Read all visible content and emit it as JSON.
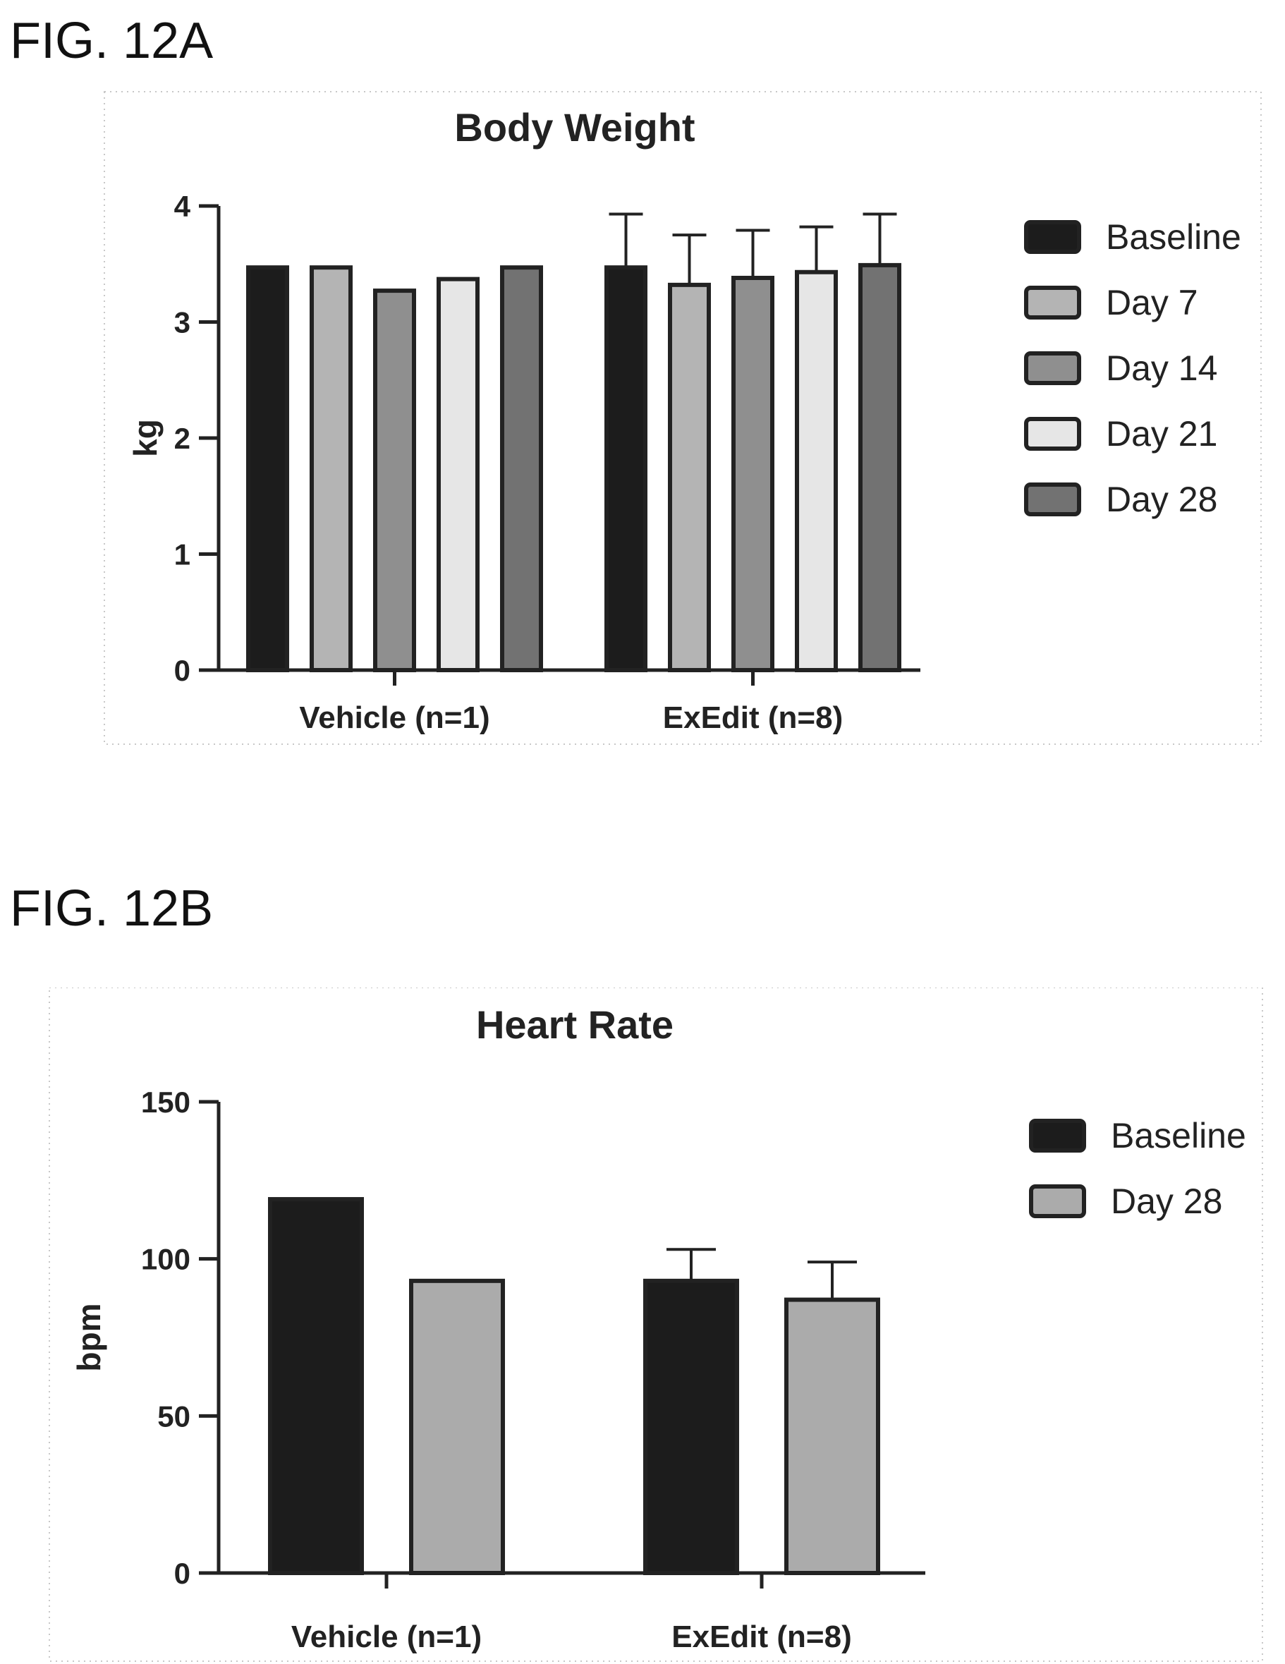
{
  "figures": [
    {
      "label": "FIG. 12A"
    },
    {
      "label": "FIG. 12B"
    }
  ],
  "colors": {
    "baseline": "#1c1c1c",
    "day7": "#b4b4b4",
    "day14": "#8f8f8f",
    "day21": "#e6e6e6",
    "day28_a": "#727272",
    "day28_b": "#ababab",
    "stroke": "#222222"
  },
  "chart_data": [
    {
      "type": "bar",
      "title": "Body Weight",
      "xlabel": "",
      "ylabel": "kg",
      "ylim": [
        0,
        4
      ],
      "yticks": [
        "0",
        "1",
        "2",
        "3",
        "4"
      ],
      "categories": [
        "Vehicle (n=1)",
        "ExEdit (n=8)"
      ],
      "legend_position": "right",
      "series": [
        {
          "name": "Baseline",
          "values": [
            3.47,
            3.47
          ],
          "error": [
            null,
            0.46
          ],
          "color_key": "baseline"
        },
        {
          "name": "Day 7",
          "values": [
            3.47,
            3.32
          ],
          "error": [
            null,
            0.43
          ],
          "color_key": "day7"
        },
        {
          "name": "Day 14",
          "values": [
            3.27,
            3.38
          ],
          "error": [
            null,
            0.41
          ],
          "color_key": "day14"
        },
        {
          "name": "Day 21",
          "values": [
            3.37,
            3.43
          ],
          "error": [
            null,
            0.39
          ],
          "color_key": "day21"
        },
        {
          "name": "Day 28",
          "values": [
            3.47,
            3.49
          ],
          "error": [
            null,
            0.44
          ],
          "color_key": "day28_a"
        }
      ]
    },
    {
      "type": "bar",
      "title": "Heart Rate",
      "xlabel": "",
      "ylabel": "bpm",
      "ylim": [
        0,
        150
      ],
      "yticks": [
        "0",
        "50",
        "100",
        "150"
      ],
      "categories": [
        "Vehicle (n=1)",
        "ExEdit (n=8)"
      ],
      "legend_position": "right",
      "series": [
        {
          "name": "Baseline",
          "values": [
            119,
            93
          ],
          "error": [
            null,
            10
          ],
          "color_key": "baseline"
        },
        {
          "name": "Day 28",
          "values": [
            93,
            87
          ],
          "error": [
            null,
            12
          ],
          "color_key": "day28_b"
        }
      ]
    }
  ]
}
